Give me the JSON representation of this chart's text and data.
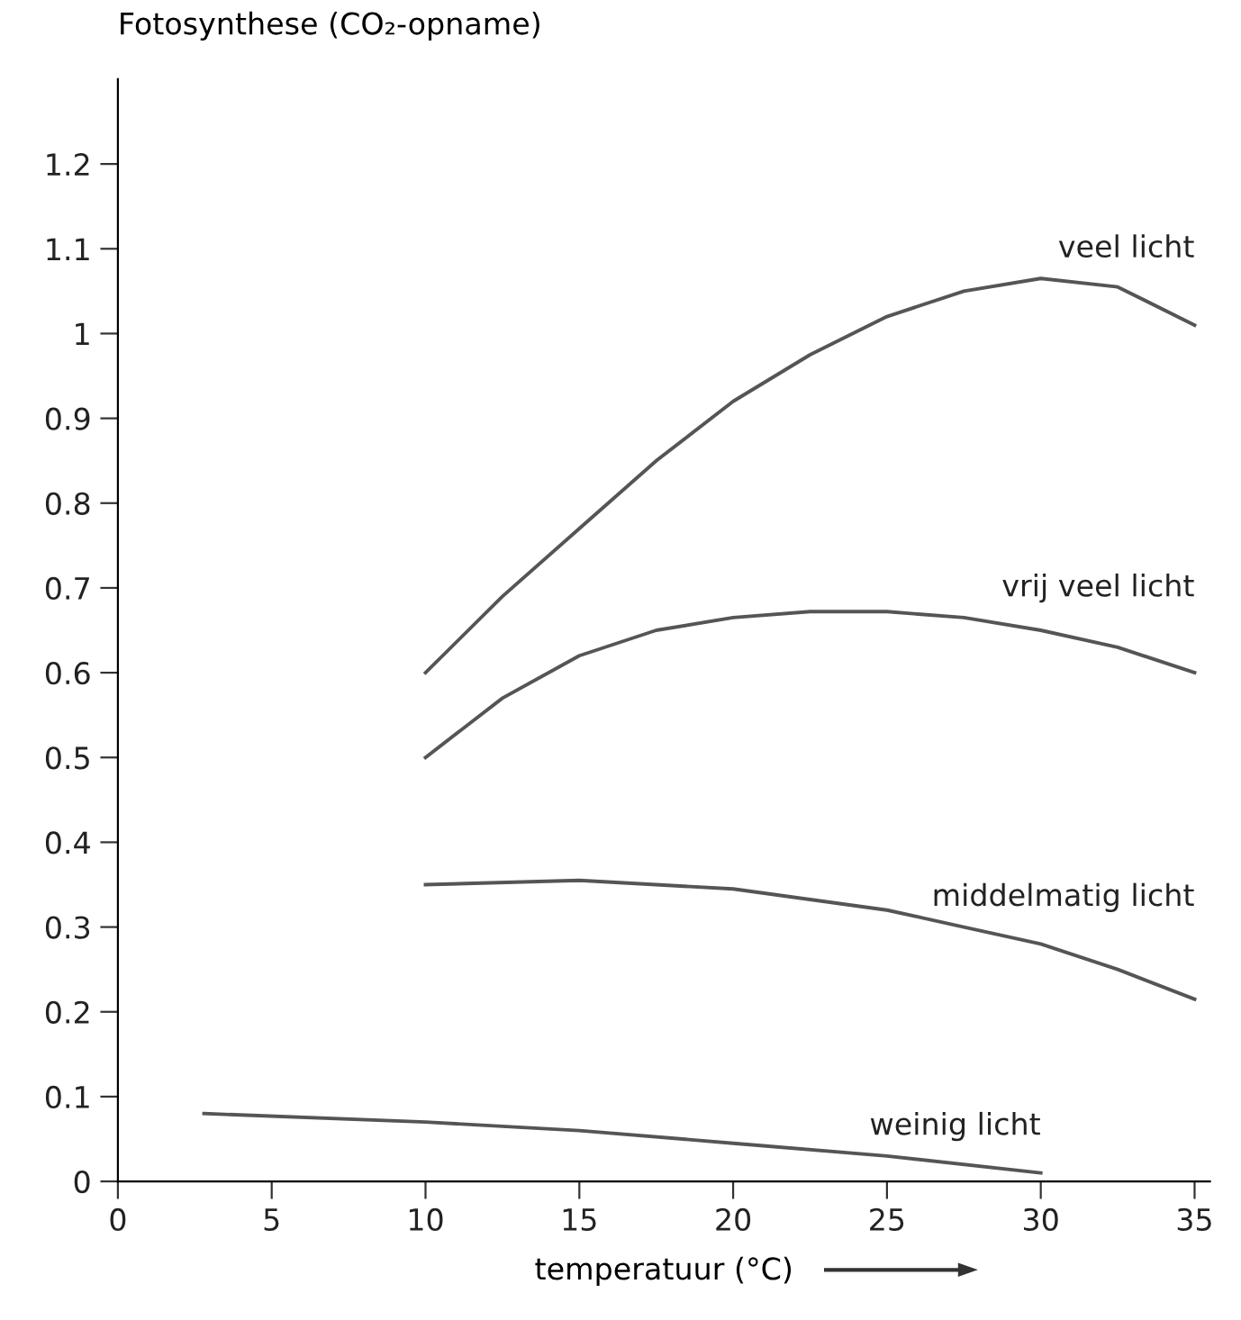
{
  "chart_data": {
    "type": "line",
    "ylabel": "Fotosynthese (CO₂-opname)",
    "xlabel": "temperatuur (°C)",
    "xlim": [
      0,
      35.5
    ],
    "ylim": [
      0,
      1.3
    ],
    "xticks": [
      0,
      5,
      10,
      15,
      20,
      25,
      30,
      35
    ],
    "yticks": [
      0,
      0.1,
      0.2,
      0.3,
      0.4,
      0.5,
      0.6,
      0.7,
      0.8,
      0.9,
      1.0,
      1.1,
      1.2
    ],
    "grid": false,
    "legend": false,
    "marker": "none",
    "line_style": "solid",
    "series": [
      {
        "name": "veel licht",
        "color": "#555555",
        "x": [
          10,
          12.5,
          15,
          17.5,
          20,
          22.5,
          25,
          27.5,
          30,
          32.5,
          35
        ],
        "values": [
          0.6,
          0.69,
          0.77,
          0.85,
          0.92,
          0.975,
          1.02,
          1.05,
          1.065,
          1.055,
          1.01
        ]
      },
      {
        "name": "vrij veel licht",
        "color": "#555555",
        "x": [
          10,
          12.5,
          15,
          17.5,
          20,
          22.5,
          25,
          27.5,
          30,
          32.5,
          35
        ],
        "values": [
          0.5,
          0.57,
          0.62,
          0.65,
          0.665,
          0.672,
          0.672,
          0.665,
          0.65,
          0.63,
          0.6
        ]
      },
      {
        "name": "middelmatig licht",
        "color": "#555555",
        "x": [
          10,
          15,
          20,
          25,
          27.5,
          30,
          32.5,
          35
        ],
        "values": [
          0.35,
          0.355,
          0.345,
          0.32,
          0.3,
          0.28,
          0.25,
          0.215
        ]
      },
      {
        "name": "weinig licht",
        "color": "#555555",
        "x": [
          2.8,
          10,
          15,
          20,
          25,
          30
        ],
        "values": [
          0.08,
          0.07,
          0.06,
          0.045,
          0.03,
          0.01
        ]
      }
    ]
  }
}
